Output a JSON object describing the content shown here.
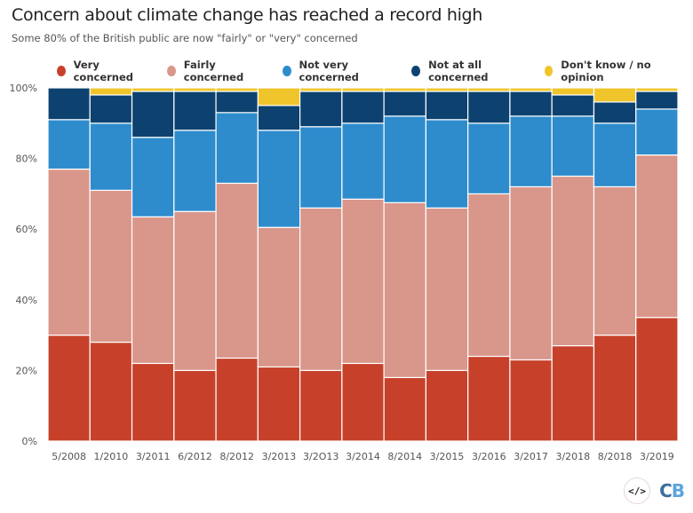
{
  "header": {
    "title": "Concern about climate change has reached a record high",
    "subtitle": "Some 80% of the British public are now \"fairly\" or \"very\" concerned"
  },
  "footer": {
    "embed_icon_text": "</>",
    "logo_c": "C",
    "logo_b": "B"
  },
  "chart_data": {
    "type": "bar",
    "stacked": true,
    "title": "Concern about climate change has reached a record high",
    "subtitle": "Some 80% of the British public are now \"fairly\" or \"very\" concerned",
    "xlabel": "",
    "ylabel": "",
    "ylim": [
      0,
      100
    ],
    "yticks": [
      0,
      20,
      40,
      60,
      80,
      100
    ],
    "ytick_labels": [
      "0%",
      "20%",
      "40%",
      "60%",
      "80%",
      "100%"
    ],
    "grid": false,
    "legend_position": "top",
    "categories": [
      "5/2008",
      "1/2010",
      "3/2011",
      "6/2012",
      "8/2012",
      "3/2013",
      "3/2O13",
      "3/2014",
      "8/2014",
      "3/2015",
      "3/2016",
      "3/2017",
      "3/2018",
      "8/2018",
      "3/2019"
    ],
    "series": [
      {
        "name": "Very concerned",
        "color": "#c7412a",
        "values": [
          30,
          28,
          22,
          20,
          23.5,
          21,
          20,
          22,
          18,
          20,
          24,
          23,
          27,
          30,
          35
        ]
      },
      {
        "name": "Fairly concerned",
        "color": "#d9968a",
        "values": [
          47,
          43,
          41.5,
          45,
          49.5,
          39.5,
          46,
          46.5,
          49.5,
          46,
          46,
          49,
          48,
          42,
          46
        ]
      },
      {
        "name": "Not very concerned",
        "color": "#2e8ccc",
        "values": [
          14,
          19,
          22.5,
          23,
          20,
          27.5,
          23,
          21.5,
          24.5,
          25,
          20,
          20,
          17,
          18,
          13
        ]
      },
      {
        "name": "Not at all concerned",
        "color": "#0d4270",
        "values": [
          9,
          8,
          13,
          11,
          6,
          7,
          10,
          9,
          7,
          8,
          9,
          7,
          6,
          6,
          5
        ]
      },
      {
        "name": "Don't know / no opinion",
        "color": "#f0c52c",
        "values": [
          0,
          2,
          1,
          1,
          1,
          5,
          1,
          1,
          1,
          1,
          1,
          1,
          2,
          4,
          1
        ]
      }
    ]
  }
}
